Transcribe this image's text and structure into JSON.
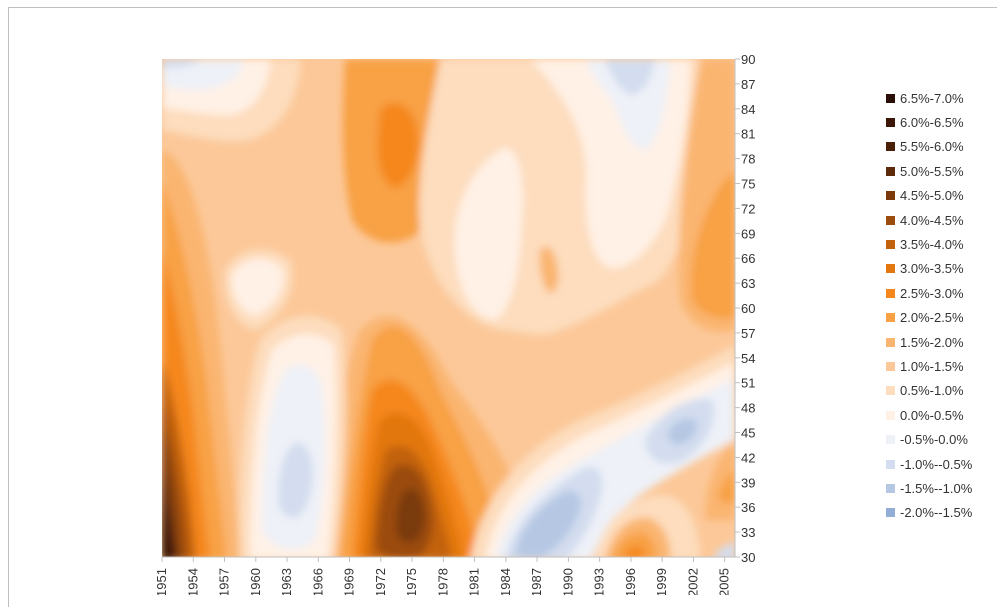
{
  "chart_data": {
    "type": "heatmap",
    "title": "",
    "xlabel": "",
    "ylabel": "",
    "x_ticks": [
      "1951",
      "1954",
      "1957",
      "1960",
      "1963",
      "1966",
      "1969",
      "1972",
      "1975",
      "1978",
      "1981",
      "1984",
      "1987",
      "1990",
      "1993",
      "1996",
      "1999",
      "2002",
      "2005"
    ],
    "y_ticks": [
      30,
      33,
      36,
      39,
      42,
      45,
      48,
      51,
      54,
      57,
      60,
      63,
      66,
      69,
      72,
      75,
      78,
      81,
      84,
      87,
      90
    ],
    "xlim": [
      1951,
      2007
    ],
    "ylim": [
      30,
      90
    ],
    "legend_position": "right",
    "legend": [
      {
        "label": "6.5%-7.0%",
        "color": "#2a0e05"
      },
      {
        "label": "6.0%-6.5%",
        "color": "#3a1707"
      },
      {
        "label": "5.5%-6.0%",
        "color": "#4a1f08"
      },
      {
        "label": "5.0%-5.5%",
        "color": "#5e2b0a"
      },
      {
        "label": "4.5%-5.0%",
        "color": "#7a3a0b"
      },
      {
        "label": "4.0%-4.5%",
        "color": "#9b4c0e"
      },
      {
        "label": "3.5%-4.0%",
        "color": "#c2620f"
      },
      {
        "label": "3.0%-3.5%",
        "color": "#e2770f"
      },
      {
        "label": "2.5%-3.0%",
        "color": "#f5871c"
      },
      {
        "label": "2.0%-2.5%",
        "color": "#f8a145"
      },
      {
        "label": "1.5%-2.0%",
        "color": "#fab571"
      },
      {
        "label": "1.0%-1.5%",
        "color": "#fcc899"
      },
      {
        "label": "0.5%-1.0%",
        "color": "#fdddbe"
      },
      {
        "label": "0.0%-0.5%",
        "color": "#fff1e6"
      },
      {
        "label": "-0.5%-0.0%",
        "color": "#eef1f8"
      },
      {
        "label": "-1.0%--0.5%",
        "color": "#d3ddef"
      },
      {
        "label": "-1.5%--1.0%",
        "color": "#b5c7e3"
      },
      {
        "label": "-2.0%--1.5%",
        "color": "#93aed6"
      }
    ]
  }
}
